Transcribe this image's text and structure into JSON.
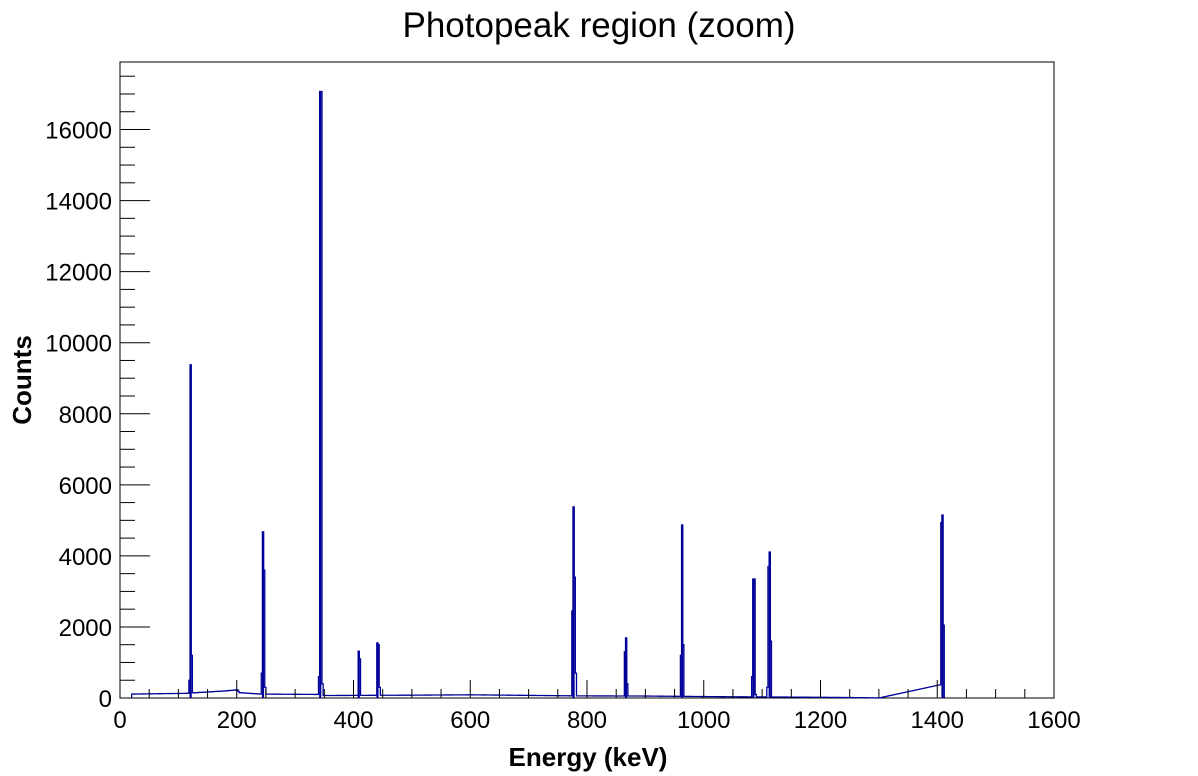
{
  "chart_data": {
    "type": "line",
    "style": "step-histogram",
    "title": "Photopeak region (zoom)",
    "xlabel": "Energy (keV)",
    "ylabel": "Counts",
    "xlim": [
      0,
      1600
    ],
    "ylim": [
      0,
      17900
    ],
    "x_ticks": [
      0,
      200,
      400,
      600,
      800,
      1000,
      1200,
      1400,
      1600
    ],
    "y_ticks": [
      0,
      2000,
      4000,
      6000,
      8000,
      10000,
      12000,
      14000,
      16000
    ],
    "grid": false,
    "legend": "none",
    "line_color": "#000099",
    "bin_width_keV": 2,
    "background": [
      [
        20,
        110
      ],
      [
        60,
        120
      ],
      [
        110,
        130
      ],
      [
        120,
        140
      ],
      [
        180,
        200
      ],
      [
        200,
        230
      ],
      [
        204,
        150
      ],
      [
        240,
        110
      ],
      [
        340,
        100
      ],
      [
        350,
        70
      ],
      [
        500,
        80
      ],
      [
        600,
        90
      ],
      [
        780,
        60
      ],
      [
        900,
        55
      ],
      [
        1000,
        40
      ],
      [
        1100,
        30
      ],
      [
        1200,
        20
      ],
      [
        1280,
        8
      ],
      [
        1300,
        0
      ]
    ],
    "peaks": [
      {
        "energy": 122,
        "bins": [
          [
            118,
            500
          ],
          [
            120,
            9380
          ],
          [
            122,
            1200
          ]
        ]
      },
      {
        "energy": 245,
        "bins": [
          [
            242,
            700
          ],
          [
            244,
            4680
          ],
          [
            246,
            3600
          ],
          [
            248,
            300
          ]
        ]
      },
      {
        "energy": 344,
        "bins": [
          [
            340,
            600
          ],
          [
            342,
            17070
          ],
          [
            344,
            17070
          ],
          [
            346,
            400
          ]
        ]
      },
      {
        "energy": 411,
        "bins": [
          [
            408,
            1320
          ],
          [
            410,
            1100
          ]
        ]
      },
      {
        "energy": 444,
        "bins": [
          [
            440,
            1550
          ],
          [
            442,
            1500
          ],
          [
            444,
            300
          ]
        ]
      },
      {
        "energy": 779,
        "bins": [
          [
            774,
            2450
          ],
          [
            776,
            5380
          ],
          [
            778,
            3400
          ],
          [
            780,
            700
          ]
        ]
      },
      {
        "energy": 867,
        "bins": [
          [
            864,
            1300
          ],
          [
            866,
            1690
          ],
          [
            868,
            400
          ]
        ]
      },
      {
        "energy": 964,
        "bins": [
          [
            960,
            1200
          ],
          [
            962,
            4870
          ],
          [
            964,
            1500
          ]
        ]
      },
      {
        "energy": 1086,
        "bins": [
          [
            1082,
            600
          ],
          [
            1084,
            3350
          ],
          [
            1086,
            3350
          ],
          [
            1088,
            100
          ]
        ]
      },
      {
        "energy": 1112,
        "bins": [
          [
            1108,
            300
          ],
          [
            1110,
            3700
          ],
          [
            1112,
            4110
          ],
          [
            1114,
            1600
          ]
        ]
      },
      {
        "energy": 1408,
        "bins": [
          [
            1404,
            370
          ],
          [
            1406,
            4930
          ],
          [
            1408,
            5150
          ],
          [
            1410,
            2050
          ]
        ]
      }
    ]
  }
}
